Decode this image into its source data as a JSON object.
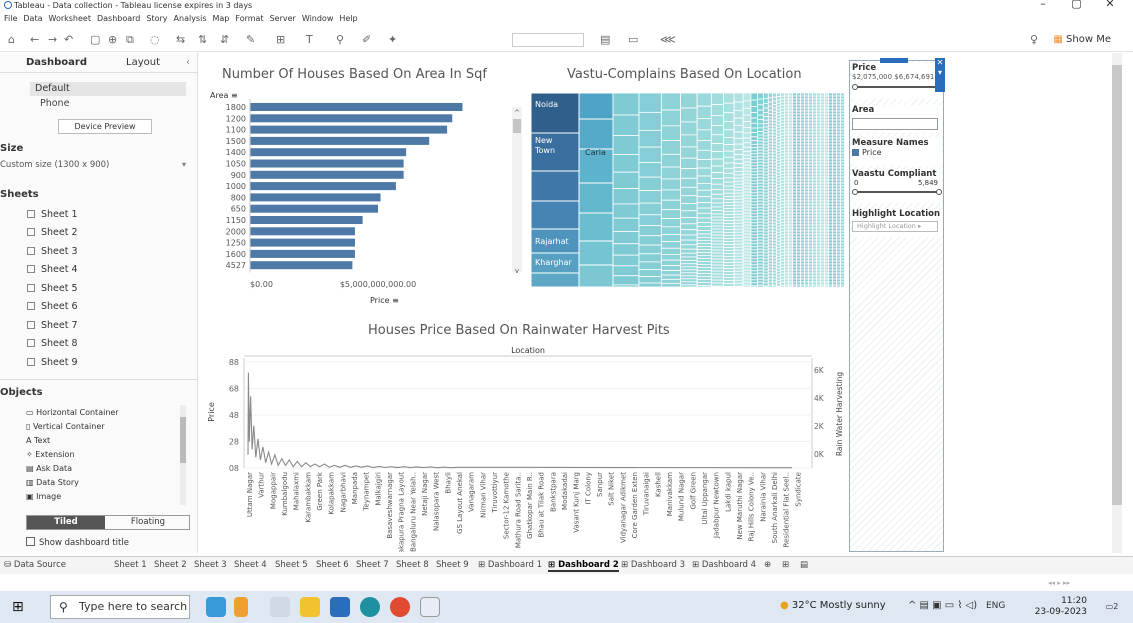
{
  "window": {
    "title": "Tableau - Data collection - Tableau license expires in 3 days",
    "controls": [
      "–",
      "▢",
      "✕"
    ]
  },
  "menu": [
    "File",
    "Data",
    "Worksheet",
    "Dashboard",
    "Story",
    "Analysis",
    "Map",
    "Format",
    "Server",
    "Window",
    "Help"
  ],
  "toolbar": {
    "show_me": "Show Me"
  },
  "left_pane": {
    "tabs": {
      "dashboard": "Dashboard",
      "layout": "Layout"
    },
    "device": {
      "default": "Default",
      "phone": "Phone",
      "preview_button": "Device Preview"
    },
    "size": {
      "heading": "Size",
      "value": "Custom size (1300 x 900)"
    },
    "sheets_heading": "Sheets",
    "sheets": [
      "Sheet 1",
      "Sheet 2",
      "Sheet 3",
      "Sheet 4",
      "Sheet 5",
      "Sheet 6",
      "Sheet 7",
      "Sheet 8",
      "Sheet 9"
    ],
    "objects_heading": "Objects",
    "objects": [
      "Horizontal Container",
      "Vertical Container",
      "Text",
      "Extension",
      "Ask Data",
      "Data Story",
      "Image"
    ],
    "tiled": "Tiled",
    "floating": "Floating",
    "show_title": "Show dashboard title"
  },
  "bar_chart": {
    "title": "Number Of Houses Based On Area In Sqf",
    "y_header": "Area",
    "x_label": "Price",
    "x_ticks": [
      "$0.00",
      "$5,000,000,000.00"
    ],
    "chart_data": {
      "type": "bar",
      "categories": [
        "1800",
        "1200",
        "1100",
        "1500",
        "1400",
        "1050",
        "900",
        "1000",
        "800",
        "650",
        "1150",
        "2000",
        "1250",
        "1600",
        "4527"
      ],
      "values": [
        8.3,
        7.9,
        7.7,
        7.0,
        6.1,
        6.0,
        6.0,
        5.7,
        5.1,
        5.0,
        4.4,
        4.1,
        4.1,
        4.1,
        4.0
      ],
      "unit": "billion",
      "xlim": [
        0,
        10
      ]
    }
  },
  "treemap": {
    "title": "Vastu-Complains Based On Location",
    "labels": [
      "Noida",
      "New Town",
      "Caria",
      "Rajarhat",
      "Kharghar"
    ]
  },
  "line_chart": {
    "title": "Houses Price Based On Rainwater Harvest Pits",
    "top_header": "Location",
    "y_label": "Price",
    "y2_label": "Rain Water Harvesting",
    "y_ticks": [
      "88",
      "68",
      "48",
      "28",
      "08"
    ],
    "y2_ticks": [
      "6K",
      "4K",
      "2K",
      "0K"
    ],
    "x_labels": [
      "Uttam Nagar",
      "Varthur",
      "Mogappair",
      "Kumbalgodu",
      "Mahalaxmi",
      "Karambakkam",
      "Green Park",
      "Kolapakkam",
      "Nagarbhavi",
      "Manpada",
      "Teynampet",
      "Malkajgiri",
      "Basaveshwarnagar",
      "Kanakapura Pragna Layout",
      "Bangaluru Near Yelah..",
      "Netaji Nagar",
      "Nalasopara West",
      "Bhayli",
      "GS Layout Anekal",
      "Vanagaram",
      "Nirman Vihar",
      "Tiruvottiyur",
      "Sector-12 Kamothe",
      "Mathura Road Sarita..",
      "Ghatkopar Main R..",
      "Bhau at Tilak Road",
      "Bankstpara",
      "Modakadai",
      "Vasant Kunj Marg",
      "IT Colony",
      "Sanpur",
      "Salt Niket",
      "Vidyanagar Adikmet",
      "Core Garden Exten",
      "Tiruvanaigai",
      "Kashell",
      "Manivakkam",
      "Mulund Nagar",
      "Golf Green",
      "Ultal Uppangar",
      "Jadabpur Newtown",
      "Lakdi kapul",
      "New Maruthi Nagar",
      "Raj Hills Colony Ve..",
      "Narainia Vihar",
      "South Anarkali Delhi",
      "Residential Flat Seel..",
      "Syndicate"
    ],
    "chart_data": {
      "type": "line",
      "series": [
        {
          "values": [
            18,
            80,
            28,
            62,
            22,
            40,
            16,
            30,
            14,
            24,
            12,
            20,
            11,
            18,
            10,
            15,
            10,
            14,
            9,
            13,
            9,
            12,
            9,
            11,
            9,
            11,
            8.5,
            10,
            8.5,
            10,
            8.5,
            9.5,
            8.5,
            9.5,
            8.4,
            9.2,
            8.4,
            9,
            8.3,
            9,
            8.3,
            8.8,
            8.3,
            8.8,
            8.2,
            8.6,
            8.2,
            8.5
          ]
        }
      ],
      "ylim": [
        8,
        88
      ]
    }
  },
  "right_panel": {
    "price_title": "Price",
    "price_range": "$2,075,000 $6,674,691",
    "area_title": "Area",
    "measure_names_title": "Measure Names",
    "measure_price": "Price",
    "vaastu_title": "Vaastu Compliant",
    "vaastu_min": "0",
    "vaastu_max": "5,849",
    "highlight_title": "Highlight Location",
    "highlight_placeholder": "Highlight Location"
  },
  "bottom_tabs": [
    "Data Source",
    "Sheet 1",
    "Sheet 2",
    "Sheet 3",
    "Sheet 4",
    "Sheet 5",
    "Sheet 6",
    "Sheet 7",
    "Sheet 8",
    "Sheet 9",
    "Dashboard 1",
    "Dashboard 2",
    "Dashboard 3",
    "Dashboard 4"
  ],
  "taskbar": {
    "search_placeholder": "Type here to search",
    "weather": "32°C  Mostly sunny",
    "lang": "ENG",
    "time": "11:20",
    "date": "23-09-2023",
    "notif_count": "2"
  }
}
